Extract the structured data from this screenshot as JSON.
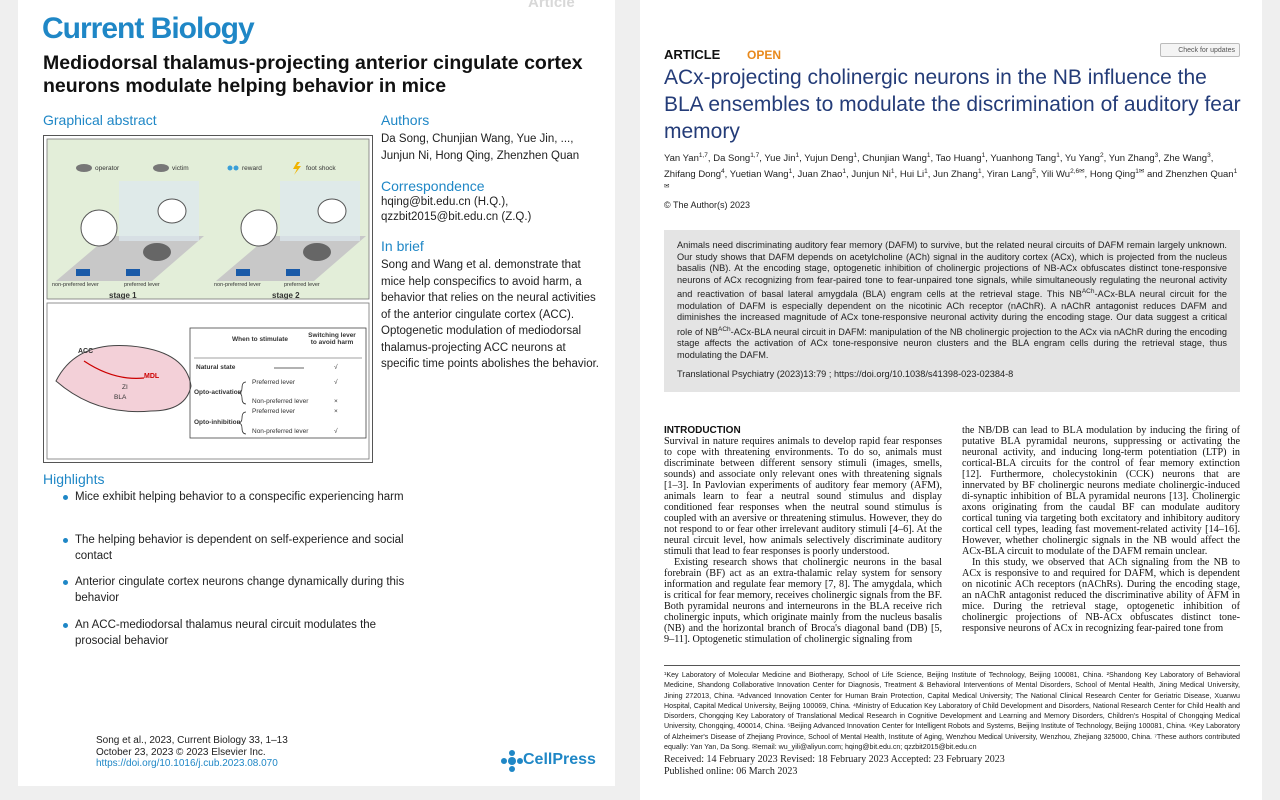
{
  "left_page": {
    "header_tag": "Article",
    "journal": "Current Biology",
    "title": "Mediodorsal thalamus-projecting anterior cingulate cortex neurons modulate helping behavior in mice",
    "graphical_abstract": {
      "heading": "Graphical abstract",
      "legend": [
        "operator",
        "victim",
        "reward",
        "foot shock"
      ],
      "stage_1": {
        "left_lever": "non-preferred lever",
        "right_lever": "preferred lever",
        "label": "stage 1"
      },
      "stage_2": {
        "left_lever": "non-preferred lever",
        "right_lever": "preferred lever",
        "label": "stage 2"
      },
      "brain_labels": [
        "ACC",
        "MDL",
        "ZI",
        "BLA"
      ],
      "table": {
        "headers": [
          "When to stimulate",
          "Switching lever to avoid harm"
        ],
        "natural": {
          "label": "Natural state",
          "mark": "√"
        },
        "groups": [
          {
            "label": "Opto-activation",
            "options": [
              {
                "lever": "Preferred lever",
                "mark": "√"
              },
              {
                "lever": "Non-preferred lever",
                "mark": "×"
              }
            ]
          },
          {
            "label": "Opto-inhibition",
            "options": [
              {
                "lever": "Preferred lever",
                "mark": "×"
              },
              {
                "lever": "Non-preferred lever",
                "mark": "√"
              }
            ]
          }
        ]
      }
    },
    "authors": {
      "heading": "Authors",
      "lines": [
        "Da Song, Chunjian Wang, Yue Jin, ...,",
        "Junjun Ni, Hong Qing, Zhenzhen Quan"
      ]
    },
    "correspondence": {
      "heading": "Correspondence",
      "lines": [
        "hqing@bit.edu.cn (H.Q.),",
        "qzzbit2015@bit.edu.cn (Z.Q.)"
      ]
    },
    "in_brief": {
      "heading": "In brief",
      "text": "Song and Wang et al. demonstrate that mice help conspecifics to avoid harm, a behavior that relies on the neural activities of the anterior cingulate cortex (ACC). Optogenetic modulation of mediodorsal thalamus-projecting ACC neurons at specific time points abolishes the behavior."
    },
    "highlights": {
      "heading": "Highlights",
      "items": [
        "Mice exhibit helping behavior to a conspecific experiencing harm",
        "The helping behavior is dependent on self-experience and social contact",
        "Anterior cingulate cortex neurons change dynamically during this behavior",
        "An ACC-mediodorsal thalamus neural circuit modulates the prosocial behavior"
      ]
    },
    "footer": {
      "lines": [
        "Song et al., 2023, Current Biology 33, 1–13",
        "October 23, 2023 © 2023 Elsevier Inc."
      ],
      "doi": "https://doi.org/10.1016/j.cub.2023.08.070",
      "publisher": "CellPress"
    }
  },
  "right_page": {
    "label": "ARTICLE",
    "access": "OPEN",
    "update_badge": "Check for updates",
    "title": "ACx-projecting cholinergic neurons in the NB influence the BLA ensembles to modulate the discrimination of auditory fear memory",
    "authors": [
      {
        "name": "Yan Yan",
        "sup": "1,7"
      },
      {
        "name": "Da Song",
        "sup": "1,7"
      },
      {
        "name": "Yue Jin",
        "sup": "1"
      },
      {
        "name": "Yujun Deng",
        "sup": "1"
      },
      {
        "name": "Chunjian Wang",
        "sup": "1"
      },
      {
        "name": "Tao Huang",
        "sup": "1"
      },
      {
        "name": "Yuanhong Tang",
        "sup": "1"
      },
      {
        "name": "Yu Yang",
        "sup": "2"
      },
      {
        "name": "Yun Zhang",
        "sup": "3"
      },
      {
        "name": "Zhe Wang",
        "sup": "3"
      },
      {
        "name": "Zhifang Dong",
        "sup": "4"
      },
      {
        "name": "Yuetian Wang",
        "sup": "1"
      },
      {
        "name": "Juan Zhao",
        "sup": "1"
      },
      {
        "name": "Junjun Ni",
        "sup": "1"
      },
      {
        "name": "Hui Li",
        "sup": "1"
      },
      {
        "name": "Jun Zhang",
        "sup": "1"
      },
      {
        "name": "Yiran Lang",
        "sup": "5"
      },
      {
        "name": "Yili Wu",
        "sup": "2,6✉"
      },
      {
        "name": "Hong Qing",
        "sup": "1✉"
      },
      {
        "name": "Zhenzhen Quan",
        "sup": "1✉"
      }
    ],
    "authors_conjunction": "and",
    "copyright": "© The Author(s) 2023",
    "abstract": [
      {
        "text": "Animals need discriminating auditory fear memory (DAFM) to survive, but the related neural circuits of DAFM remain largely unknown. Our study shows that DAFM depends on acetylcholine (ACh) signal in the auditory cortex (ACx), which is projected from the nucleus basalis (NB). At the encoding stage, optogenetic inhibition of cholinergic projections of NB-ACx obfuscates distinct tone-responsive neurons of ACx recognizing from fear-paired tone to fear-unpaired tone signals, while simultaneously regulating the neuronal activity and reactivation of basal lateral amygdala (BLA) engram cells at the retrieval stage. This NB"
      },
      {
        "sup": "ACh"
      },
      {
        "text": "-ACx-BLA neural circuit for the modulation of DAFM is especially dependent on the nicotinic ACh receptor (nAChR). A nAChR antagonist reduces DAFM and diminishes the increased magnitude of ACx tone-responsive neuronal activity during the encoding stage. Our data suggest a critical role of NB"
      },
      {
        "sup": "ACh"
      },
      {
        "text": "-ACx-BLA neural circuit in DAFM: manipulation of the NB cholinergic projection to the ACx via nAChR during the encoding stage affects the activation of ACx tone-responsive neuron clusters and the BLA engram cells during the retrieval stage, thus modulating the DAFM."
      }
    ],
    "citation": "Translational Psychiatry (2023)13:79 ; https://doi.org/10.1038/s41398-023-02384-8",
    "introduction": {
      "heading": "INTRODUCTION",
      "column_1": [
        "Survival in nature requires animals to develop rapid fear responses to cope with threatening environments. To do so, animals must discriminate between different sensory stimuli (images, smells, sounds) and associate only relevant ones with threatening signals [1–3]. In Pavlovian experiments of auditory fear memory (AFM), animals learn to fear a neutral sound stimulus and display conditioned fear responses when the neutral sound stimulus is coupled with an aversive or threatening stimulus. However, they do not respond to or fear other irrelevant auditory stimuli [4–6]. At the neural circuit level, how animals selectively discriminate auditory stimuli that lead to fear responses is poorly understood.",
        "Existing research shows that cholinergic neurons in the basal forebrain (BF) act as an extra-thalamic relay system for sensory information and regulate fear memory [7, 8]. The amygdala, which is critical for fear memory, receives cholinergic signals from the BF. Both pyramidal neurons and interneurons in the BLA receive rich cholinergic inputs, which originate mainly from the nucleus basalis (NB) and the horizontal branch of Broca's diagonal band (DB) [5, 9–11]. Optogenetic stimulation of cholinergic signaling from"
      ],
      "column_2": [
        "the NB/DB can lead to BLA modulation by inducing the firing of putative BLA pyramidal neurons, suppressing or activating the neuronal activity, and inducing long-term potentiation (LTP) in cortical-BLA circuits for the control of fear memory extinction [12]. Furthermore, cholecystokinin (CCK) neurons that are innervated by BF cholinergic neurons mediate cholinergic-induced di-synaptic inhibition of BLA pyramidal neurons [13]. Cholinergic axons originating from the caudal BF can modulate auditory cortical tuning via targeting both excitatory and inhibitory auditory cortical cell types, leading fast movement-related activity [14–16]. However, whether cholinergic signals in the NB would affect the ACx-BLA circuit to modulate of the DAFM remain unclear.",
        "In this study, we observed that ACh signaling from the NB to ACx is responsive to and required for DAFM, which is dependent on nicotinic ACh receptors (nAChRs). During the encoding stage, an nAChR antagonist reduced the discriminative ability of AFM in mice. During the retrieval stage, optogenetic inhibition of cholinergic projections of NB-ACx obfuscates distinct tone-responsive neurons of ACx in recognizing fear-paired tone from"
      ]
    },
    "affiliations": "¹Key Laboratory of Molecular Medicine and Biotherapy, School of Life Science, Beijing Institute of Technology, Beijing 100081, China. ²Shandong Key Laboratory of Behavioral Medicine, Shandong Collaborative Innovation Center for Diagnosis, Treatment & Behavioral Interventions of Mental Disorders, School of Mental Health, Jining Medical University, Jining 272013, China. ³Advanced Innovation Center for Human Brain Protection, Capital Medical University; The National Clinical Research Center for Geriatric Disease, Xuanwu Hospital, Capital Medical University, Beijing 100069, China. ⁴Ministry of Education Key Laboratory of Child Development and Disorders, National Research Center for Child Health and Disorders, Chongqing Key Laboratory of Translational Medical Research in Cognitive Development and Learning and Memory Disorders, Children's Hospital of Chongqing Medical University, Chongqing, 400014, China. ⁵Beijing Advanced Innovation Center for Intelligent Robots and Systems, Beijing Institute of Technology, Beijing 100081, China. ⁶Key Laboratory of Alzheimer's Disease of Zhejiang Province, School of Mental Health, Institute of Aging, Wenzhou Medical University, Wenzhou, Zhejiang 325000, China. ⁷These authors contributed equally: Yan Yan, Da Song. ✉email: wu_yili@aliyun.com; hqing@bit.edu.cn; qzzbit2015@bit.edu.cn",
    "dates": [
      "Received: 14 February 2023 Revised: 18 February 2023 Accepted: 23 February 2023",
      "Published online: 06 March 2023"
    ]
  }
}
